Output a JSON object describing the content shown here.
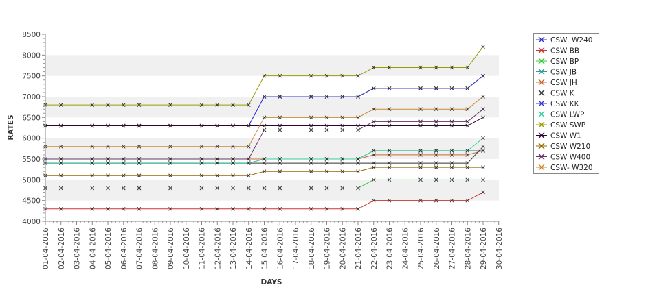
{
  "chart_data": {
    "type": "line",
    "title": "",
    "xlabel": "DAYS",
    "ylabel": "RATES",
    "ylim": [
      4000,
      8500
    ],
    "yticks": [
      4000,
      4500,
      5000,
      5500,
      6000,
      6500,
      7000,
      7500,
      8000,
      8500
    ],
    "grid": "alternating horizontal bands",
    "legend_position": "right",
    "x": [
      "01-04-2016",
      "02-04-2016",
      "03-04-2016",
      "04-04-2016",
      "05-04-2016",
      "06-04-2016",
      "07-04-2016",
      "08-04-2016",
      "09-04-2016",
      "10-04-2016",
      "11-04-2016",
      "12-04-2016",
      "13-04-2016",
      "14-04-2016",
      "15-04-2016",
      "16-04-2016",
      "17-04-2016",
      "18-04-2016",
      "19-04-2016",
      "20-04-2016",
      "21-04-2016",
      "22-04-2016",
      "23-04-2016",
      "24-04-2016",
      "25-04-2016",
      "26-04-2016",
      "27-04-2016",
      "28-04-2016",
      "29-04-2016",
      "30-04-2016"
    ],
    "series": [
      {
        "name": "CSW  W240",
        "color": "#3333cc",
        "values": [
          6300,
          6300,
          null,
          6300,
          6300,
          6300,
          6300,
          null,
          6300,
          null,
          6300,
          6300,
          6300,
          6300,
          7000,
          7000,
          null,
          7000,
          7000,
          7000,
          7000,
          7200,
          7200,
          null,
          7200,
          7200,
          7200,
          7200,
          7500,
          null
        ]
      },
      {
        "name": "CSW BB",
        "color": "#cc3333",
        "values": [
          4300,
          4300,
          null,
          4300,
          4300,
          4300,
          4300,
          null,
          4300,
          null,
          4300,
          4300,
          4300,
          4300,
          4300,
          4300,
          null,
          4300,
          4300,
          4300,
          4300,
          4500,
          4500,
          null,
          4500,
          4500,
          4500,
          4500,
          4700,
          null
        ]
      },
      {
        "name": "CSW BP",
        "color": "#33cc33",
        "values": [
          4800,
          4800,
          null,
          4800,
          4800,
          4800,
          4800,
          null,
          4800,
          null,
          4800,
          4800,
          4800,
          4800,
          4800,
          4800,
          null,
          4800,
          4800,
          4800,
          4800,
          5000,
          5000,
          null,
          5000,
          5000,
          5000,
          5000,
          5000,
          null
        ]
      },
      {
        "name": "CSW JB",
        "color": "#339999",
        "values": [
          5400,
          5400,
          null,
          5400,
          5400,
          5400,
          5400,
          null,
          5400,
          null,
          5400,
          5400,
          5400,
          5400,
          5500,
          5500,
          null,
          5500,
          5500,
          5500,
          5500,
          5700,
          5700,
          null,
          5700,
          5700,
          5700,
          5700,
          5700,
          null
        ]
      },
      {
        "name": "CSW JH",
        "color": "#cc6633",
        "values": [
          5500,
          5500,
          null,
          5500,
          5500,
          5500,
          5500,
          null,
          5500,
          null,
          5500,
          5500,
          5500,
          5500,
          5500,
          5500,
          null,
          5500,
          5500,
          5500,
          5500,
          5600,
          5600,
          null,
          5600,
          5600,
          5600,
          5600,
          5700,
          null
        ]
      },
      {
        "name": "CSW K",
        "color": "#333333",
        "values": [
          5400,
          5400,
          null,
          5400,
          5400,
          5400,
          5400,
          null,
          5400,
          null,
          5400,
          5400,
          5400,
          5400,
          5400,
          5400,
          null,
          5400,
          5400,
          5400,
          5400,
          5400,
          5400,
          null,
          5400,
          5400,
          5400,
          5400,
          5800,
          null
        ]
      },
      {
        "name": "CSW KK",
        "color": "#3333cc",
        "values": [
          6300,
          6300,
          null,
          6300,
          6300,
          6300,
          6300,
          null,
          6300,
          null,
          6300,
          6300,
          6300,
          6300,
          7000,
          7000,
          null,
          7000,
          7000,
          7000,
          7000,
          7200,
          7200,
          null,
          7200,
          7200,
          7200,
          7200,
          7500,
          null
        ]
      },
      {
        "name": "CSW LWP",
        "color": "#33cc99",
        "values": [
          5400,
          5400,
          null,
          5400,
          5400,
          5400,
          5400,
          null,
          5400,
          null,
          5400,
          5400,
          5400,
          5400,
          5500,
          5500,
          null,
          5500,
          5500,
          5500,
          5500,
          5700,
          5700,
          null,
          5700,
          5700,
          5700,
          5700,
          6000,
          null
        ]
      },
      {
        "name": "CSW SWP",
        "color": "#999900",
        "values": [
          6800,
          6800,
          null,
          6800,
          6800,
          6800,
          6800,
          null,
          6800,
          null,
          6800,
          6800,
          6800,
          6800,
          7500,
          7500,
          null,
          7500,
          7500,
          7500,
          7500,
          7700,
          7700,
          null,
          7700,
          7700,
          7700,
          7700,
          8200,
          null
        ]
      },
      {
        "name": "CSW W1",
        "color": "#330033",
        "values": [
          6300,
          6300,
          null,
          6300,
          6300,
          6300,
          6300,
          null,
          6300,
          null,
          6300,
          6300,
          6300,
          6300,
          6300,
          6300,
          null,
          6300,
          6300,
          6300,
          6300,
          6300,
          6300,
          null,
          6300,
          6300,
          6300,
          6300,
          6500,
          null
        ]
      },
      {
        "name": "CSW W210",
        "color": "#996600",
        "values": [
          5100,
          5100,
          null,
          5100,
          5100,
          5100,
          5100,
          null,
          5100,
          null,
          5100,
          5100,
          5100,
          5100,
          5200,
          5200,
          null,
          5200,
          5200,
          5200,
          5200,
          5300,
          5300,
          null,
          5300,
          5300,
          5300,
          5300,
          5300,
          null
        ]
      },
      {
        "name": "CSW W400",
        "color": "#663366",
        "values": [
          5500,
          5500,
          null,
          5500,
          5500,
          5500,
          5500,
          null,
          5500,
          null,
          5500,
          5500,
          5500,
          5500,
          6200,
          6200,
          null,
          6200,
          6200,
          6200,
          6200,
          6400,
          6400,
          null,
          6400,
          6400,
          6400,
          6400,
          6700,
          null
        ]
      },
      {
        "name": "CSW- W320",
        "color": "#cc8833",
        "values": [
          5800,
          5800,
          null,
          5800,
          5800,
          5800,
          5800,
          null,
          5800,
          null,
          5800,
          5800,
          5800,
          5800,
          6500,
          6500,
          null,
          6500,
          6500,
          6500,
          6500,
          6700,
          6700,
          null,
          6700,
          6700,
          6700,
          6700,
          7000,
          null
        ]
      }
    ]
  }
}
